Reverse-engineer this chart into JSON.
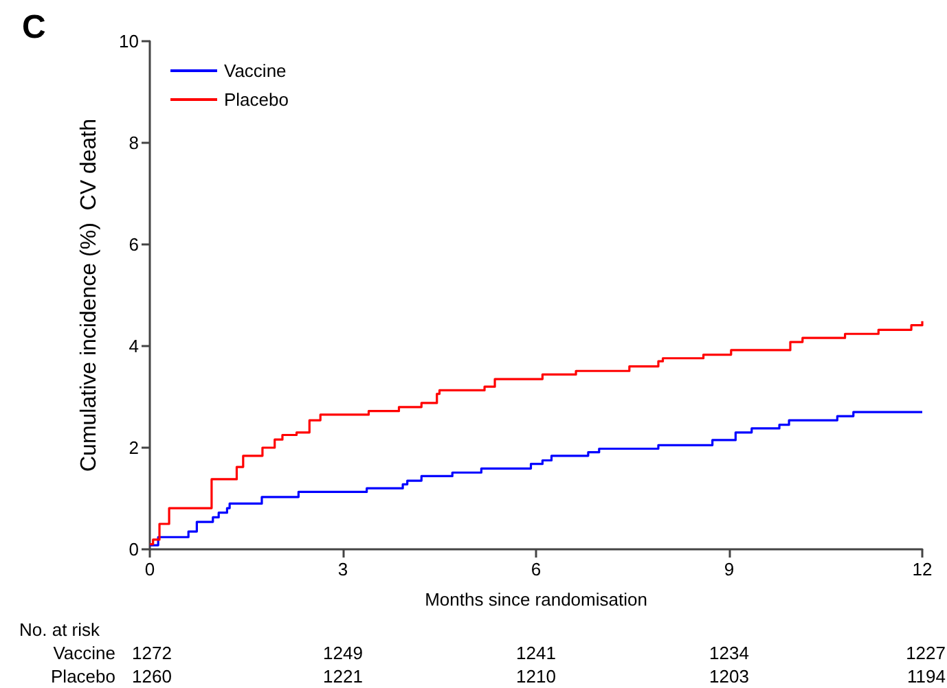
{
  "chart_data": {
    "type": "step",
    "xlabel": "Months since randomisation",
    "ylabel": "Cumulative incidence (%)  CV death",
    "xlim": [
      0,
      12
    ],
    "xticks": [
      0,
      3,
      6,
      9,
      12
    ],
    "ylim": [
      0,
      10
    ],
    "yticks": [
      0,
      2,
      4,
      6,
      8,
      10
    ],
    "grid": false,
    "legend": "top left",
    "marker": "none",
    "line_style": "solid",
    "series": [
      {
        "name": "Vaccine",
        "color": "#0000ff",
        "x": [
          0,
          0.13,
          0.6,
          0.73,
          0.98,
          1.07,
          1.2,
          1.24,
          1.74,
          2.31,
          3.37,
          3.93,
          4.0,
          4.22,
          4.7,
          5.15,
          5.92,
          6.1,
          6.24,
          6.81,
          6.98,
          7.9,
          8.74,
          9.1,
          9.35,
          9.78,
          9.93,
          10.68,
          10.93,
          12
        ],
        "values": [
          0.08,
          0.24,
          0.35,
          0.54,
          0.63,
          0.72,
          0.81,
          0.9,
          1.03,
          1.13,
          1.2,
          1.28,
          1.35,
          1.44,
          1.51,
          1.59,
          1.68,
          1.75,
          1.84,
          1.91,
          1.98,
          2.05,
          2.15,
          2.3,
          2.38,
          2.45,
          2.54,
          2.62,
          2.7,
          2.7
        ]
      },
      {
        "name": "Placebo",
        "color": "#ff0000",
        "x": [
          0,
          0.05,
          0.15,
          0.3,
          0.96,
          1.35,
          1.45,
          1.75,
          1.94,
          2.06,
          2.28,
          2.48,
          2.65,
          3.4,
          3.87,
          4.22,
          4.46,
          4.5,
          5.2,
          5.36,
          6.1,
          6.62,
          7.45,
          7.9,
          7.97,
          8.6,
          9.03,
          9.95,
          10.14,
          10.8,
          11.32,
          11.83,
          12
        ],
        "values": [
          0.1,
          0.19,
          0.5,
          0.81,
          1.38,
          1.62,
          1.84,
          2.0,
          2.16,
          2.25,
          2.3,
          2.54,
          2.65,
          2.72,
          2.8,
          2.88,
          3.06,
          3.13,
          3.2,
          3.35,
          3.44,
          3.51,
          3.6,
          3.7,
          3.76,
          3.83,
          3.92,
          4.08,
          4.16,
          4.24,
          4.32,
          4.41,
          4.49
        ]
      }
    ],
    "annotations": [
      "C",
      "No. at risk",
      "Vaccine",
      "1272",
      "1249",
      "1241",
      "1234",
      "1227",
      "Placebo",
      "1260",
      "1221",
      "1210",
      "1203",
      "1194"
    ]
  }
}
